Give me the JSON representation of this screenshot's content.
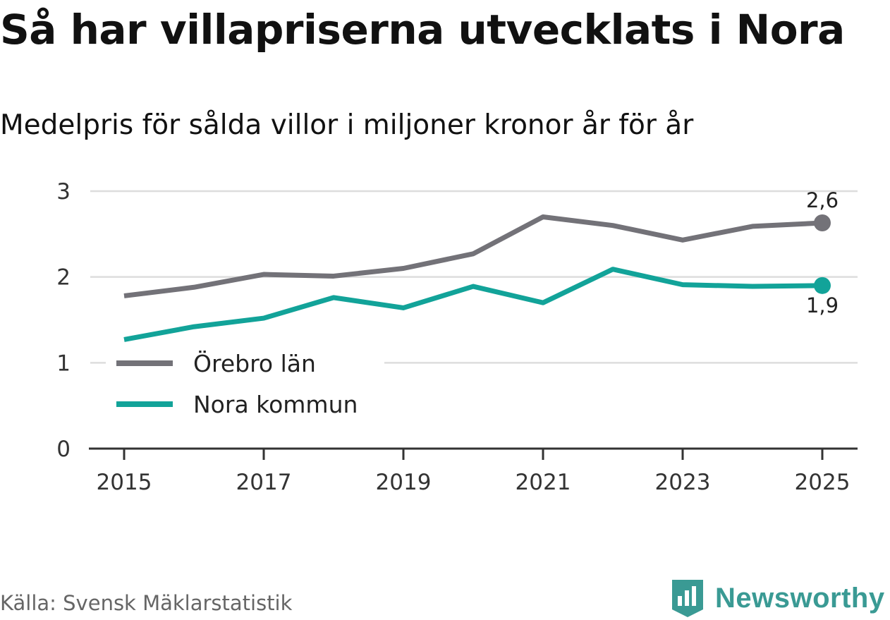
{
  "title": "Så har villapriserna utvecklats i Nora",
  "subtitle": "Medelpris för sålda villor i miljoner kronor år för år",
  "source": "Källa: Svensk Mäklarstatistik",
  "brand": "Newsworthy",
  "colors": {
    "orebro": "#737278",
    "nora": "#12a399",
    "grid": "#dddddd",
    "axis": "#333333",
    "brand": "#3a9a94"
  },
  "chart_data": {
    "type": "line",
    "x": [
      2015,
      2016,
      2017,
      2018,
      2019,
      2020,
      2021,
      2022,
      2023,
      2024,
      2025
    ],
    "xticks": [
      "2015",
      "2017",
      "2019",
      "2021",
      "2023",
      "2025"
    ],
    "yticks": [
      "0",
      "1",
      "2",
      "3"
    ],
    "ylim": [
      0,
      3
    ],
    "series": [
      {
        "name": "Örebro län",
        "key": "orebro",
        "values": [
          1.78,
          1.88,
          2.03,
          2.01,
          2.1,
          2.27,
          2.7,
          2.6,
          2.43,
          2.59,
          2.63
        ],
        "end_label": "2,6"
      },
      {
        "name": "Nora kommun",
        "key": "nora",
        "values": [
          1.27,
          1.42,
          1.52,
          1.76,
          1.64,
          1.89,
          1.7,
          2.09,
          1.91,
          1.89,
          1.9
        ],
        "end_label": "1,9"
      }
    ]
  }
}
